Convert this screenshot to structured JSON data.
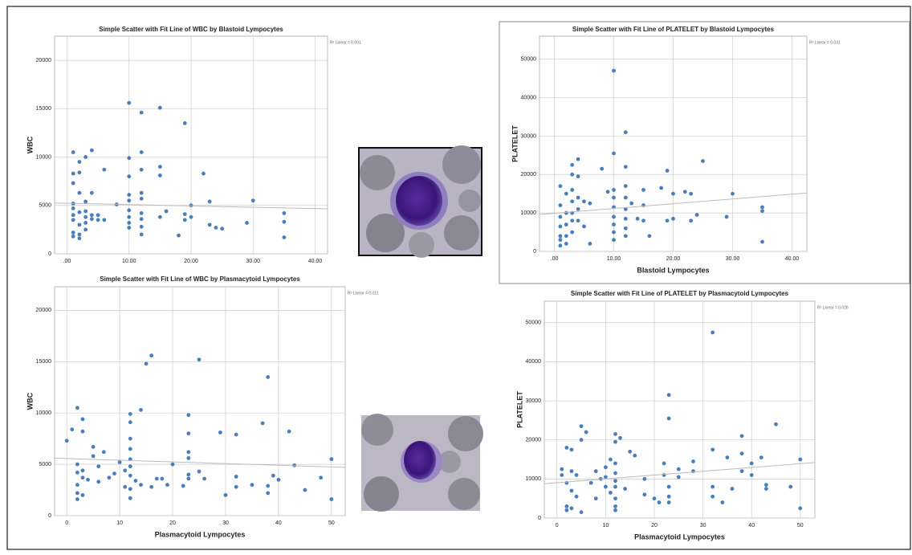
{
  "chart_data": [
    {
      "type": "scatter",
      "title": "Simple Scatter with Fit Line of WBC by Blastoid Lympocytes",
      "y_label": "WBC",
      "annotation": "R² Linear = 0.001",
      "color": "#4a7ebb",
      "grid": true,
      "xlim": [
        -2,
        42
      ],
      "ylim": [
        0,
        22500
      ],
      "xticks": [
        {
          "value": 0,
          "label": ".00"
        },
        {
          "value": 10,
          "label": "10.00"
        },
        {
          "value": 20,
          "label": "20.00"
        },
        {
          "value": 30,
          "label": "30.00"
        },
        {
          "value": 40,
          "label": "40.00"
        }
      ],
      "yticks": [
        0,
        5000,
        10000,
        15000,
        20000
      ],
      "x": [
        1,
        1,
        1,
        1,
        1,
        1,
        1,
        1,
        1,
        2,
        2,
        2,
        2,
        2,
        2,
        2,
        3,
        3,
        3,
        3,
        3,
        3,
        4,
        4,
        4,
        4,
        5,
        5,
        6,
        6,
        8,
        10,
        10,
        10,
        10,
        10,
        10,
        10,
        10,
        10,
        12,
        12,
        12,
        12,
        12,
        12,
        12,
        12,
        12,
        15,
        15,
        15,
        15,
        16,
        18,
        19,
        19,
        19,
        20,
        20,
        22,
        23,
        23,
        24,
        25,
        29,
        30,
        35,
        35,
        35
      ],
      "values": [
        10500,
        8300,
        7300,
        5200,
        4700,
        4000,
        3500,
        2200,
        1800,
        9500,
        8400,
        6300,
        4300,
        3000,
        2000,
        1600,
        10000,
        5400,
        4400,
        3800,
        3200,
        2500,
        10700,
        6300,
        4000,
        3600,
        4000,
        3500,
        8700,
        3500,
        5100,
        15600,
        9900,
        8000,
        6100,
        5500,
        4500,
        3800,
        3200,
        2700,
        14600,
        10500,
        8700,
        6300,
        5700,
        4200,
        3600,
        2800,
        2000,
        15100,
        9000,
        8100,
        3800,
        4400,
        1900,
        13500,
        4100,
        3500,
        5000,
        3800,
        8300,
        5400,
        3000,
        2700,
        2600,
        3200,
        5500,
        4200,
        3300,
        1700
      ],
      "fit_line": {
        "x": [
          -2,
          42
        ],
        "y": [
          5250,
          4650
        ]
      }
    },
    {
      "type": "scatter",
      "title": "Simple Scatter with Fit Line of PLATELET by Blastoid Lympocytes",
      "y_label": "PLATELET",
      "x_label": "Blastoid Lympocytes",
      "annotation": "R² Linear = 0.031",
      "color": "#4a7ebb",
      "grid": true,
      "xlim": [
        -2.5,
        42.5
      ],
      "ylim": [
        0,
        56000
      ],
      "xticks": [
        {
          "value": 0,
          "label": ".00"
        },
        {
          "value": 10,
          "label": "10.00"
        },
        {
          "value": 20,
          "label": "20.00"
        },
        {
          "value": 30,
          "label": "30.00"
        },
        {
          "value": 40,
          "label": "40.00"
        }
      ],
      "yticks": [
        0,
        10000,
        20000,
        30000,
        40000,
        50000
      ],
      "x": [
        1,
        1,
        1,
        1,
        1,
        1,
        1,
        2,
        2,
        2,
        2,
        2,
        3,
        3,
        3,
        3,
        3,
        3,
        3,
        4,
        4,
        4,
        4,
        4,
        5,
        5,
        6,
        6,
        8,
        9,
        10,
        10,
        10,
        10,
        10,
        10,
        10,
        10,
        10,
        12,
        12,
        12,
        12,
        12,
        12,
        12,
        12,
        13,
        14,
        15,
        15,
        15,
        16,
        18,
        19,
        19,
        20,
        20,
        22,
        23,
        23,
        24,
        25,
        29,
        30,
        35,
        35,
        35
      ],
      "values": [
        17000,
        12000,
        9000,
        6500,
        4000,
        3000,
        1500,
        15000,
        10000,
        7000,
        4000,
        2000,
        22500,
        20000,
        16000,
        13000,
        10000,
        8000,
        5000,
        24000,
        19500,
        14000,
        11000,
        8000,
        13000,
        6500,
        12500,
        2000,
        21500,
        15500,
        47000,
        25500,
        16000,
        14000,
        11500,
        9000,
        7000,
        5000,
        3000,
        31000,
        22000,
        17000,
        14000,
        11000,
        8500,
        6000,
        4000,
        12500,
        8500,
        16000,
        12000,
        8000,
        4000,
        16500,
        21000,
        8000,
        15000,
        8500,
        15500,
        15000,
        8000,
        9500,
        23500,
        9000,
        15000,
        11500,
        10500,
        2500
      ],
      "fit_line": {
        "x": [
          -2.5,
          42.5
        ],
        "y": [
          9600,
          15200
        ]
      }
    },
    {
      "type": "scatter",
      "title": "Simple Scatter with Fit Line of WBC by Plasmacytoid Lympocytes",
      "y_label": "WBC",
      "x_label": "Plasmacytoid Lympocytes",
      "annotation": "R² Linear = 0.011",
      "color": "#4a7ebb",
      "grid": true,
      "xlim": [
        -2.3,
        52.6
      ],
      "ylim": [
        0,
        22300
      ],
      "xticks": [
        0,
        10,
        20,
        30,
        40,
        50
      ],
      "yticks": [
        0,
        5000,
        10000,
        15000,
        20000
      ],
      "x": [
        0,
        1,
        2,
        2,
        2,
        2,
        2,
        2,
        3,
        3,
        3,
        3,
        3,
        4,
        5,
        5,
        6,
        6,
        7,
        8,
        9,
        10,
        11,
        11,
        12,
        12,
        12,
        12,
        12,
        12,
        12,
        12,
        12,
        13,
        14,
        14,
        15,
        16,
        16,
        17,
        18,
        19,
        20,
        22,
        23,
        23,
        23,
        23,
        23,
        23,
        25,
        25,
        26,
        29,
        30,
        32,
        32,
        32,
        35,
        37,
        38,
        38,
        38,
        39,
        40,
        42,
        43,
        45,
        48,
        50,
        50
      ],
      "values": [
        7300,
        8400,
        10500,
        5000,
        4200,
        3000,
        2200,
        1600,
        9400,
        8200,
        4400,
        3700,
        2000,
        3500,
        6700,
        5800,
        4800,
        3300,
        6200,
        3700,
        4100,
        5200,
        4400,
        2800,
        9900,
        9100,
        7500,
        6500,
        5500,
        4800,
        3900,
        2600,
        1700,
        3400,
        3000,
        10300,
        14800,
        15600,
        2800,
        3600,
        3600,
        3000,
        5000,
        2900,
        9800,
        8000,
        6200,
        5600,
        4000,
        3600,
        15200,
        4300,
        3600,
        8100,
        2000,
        7900,
        3800,
        2800,
        3000,
        9000,
        13500,
        2900,
        2200,
        3900,
        3500,
        8200,
        4900,
        2500,
        3700,
        5500,
        1600
      ],
      "fit_line": {
        "x": [
          -2.3,
          52.6
        ],
        "y": [
          5600,
          4700
        ]
      }
    },
    {
      "type": "scatter",
      "title": "Simple Scatter with Fit Line of PLATELET by Plasmacytoid Lympocytes",
      "y_label": "PLATELET",
      "x_label": "Plasmacytoid Lympocytes",
      "annotation": "R² Linear = 0.026",
      "color": "#4a7ebb",
      "grid": true,
      "xlim": [
        -2.6,
        53
      ],
      "ylim": [
        0,
        55500
      ],
      "xticks": [
        0,
        10,
        20,
        30,
        40,
        50
      ],
      "yticks": [
        0,
        10000,
        20000,
        30000,
        40000,
        50000
      ],
      "x": [
        1,
        1,
        2,
        2,
        2,
        2,
        3,
        3,
        3,
        3,
        4,
        4,
        5,
        5,
        5,
        6,
        7,
        8,
        8,
        9,
        10,
        10,
        10,
        11,
        11,
        12,
        12,
        12,
        12,
        12,
        12,
        12,
        12,
        12,
        13,
        14,
        15,
        16,
        18,
        18,
        20,
        21,
        22,
        22,
        23,
        23,
        23,
        23,
        23,
        25,
        25,
        28,
        28,
        32,
        32,
        32,
        32,
        34,
        35,
        36,
        38,
        38,
        38,
        40,
        40,
        42,
        43,
        43,
        45,
        48,
        50,
        50
      ],
      "values": [
        12500,
        11000,
        18000,
        9000,
        3000,
        2000,
        17500,
        12000,
        7000,
        2500,
        11000,
        5500,
        23500,
        20000,
        1500,
        22000,
        9000,
        12000,
        5000,
        10000,
        13000,
        10500,
        8000,
        15000,
        6500,
        21500,
        19500,
        14000,
        11500,
        9500,
        8000,
        5000,
        3000,
        2000,
        20500,
        7500,
        17000,
        16000,
        10000,
        6000,
        5000,
        4000,
        14000,
        11000,
        31500,
        25500,
        8000,
        5500,
        4000,
        12500,
        10500,
        14500,
        12000,
        47500,
        17500,
        8000,
        5500,
        4000,
        15500,
        7500,
        21000,
        16500,
        12000,
        14000,
        11000,
        15500,
        8500,
        7500,
        24000,
        8000,
        15000,
        2500
      ],
      "fit_line": {
        "x": [
          -2.6,
          53
        ],
        "y": [
          8800,
          14200
        ]
      }
    }
  ]
}
